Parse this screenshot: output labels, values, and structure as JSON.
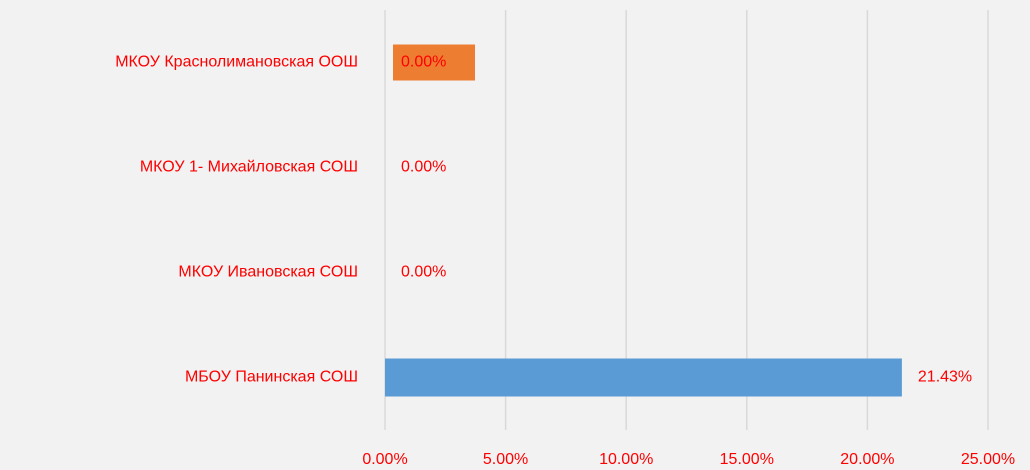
{
  "chart_data": {
    "type": "bar",
    "orientation": "horizontal",
    "categories": [
      "МКОУ Краснолимановская ООШ",
      "МКОУ 1- Михайловская СОШ",
      "МКОУ Ивановская СОШ",
      "МБОУ Панинская СОШ"
    ],
    "values": [
      0,
      0,
      0,
      21.43
    ],
    "value_labels": [
      "0.00%",
      "0.00%",
      "0.00%",
      "21.43%"
    ],
    "color": "#5b9bd5",
    "xlim": [
      0,
      25
    ],
    "xticks": [
      {
        "value": 0,
        "label": "0.00%"
      },
      {
        "value": 5,
        "label": "5.00%"
      },
      {
        "value": 10,
        "label": "10.00%"
      },
      {
        "value": 15,
        "label": "15.00%"
      },
      {
        "value": 20,
        "label": "20.00%"
      },
      {
        "value": 25,
        "label": "25.00%"
      }
    ],
    "grid": true
  }
}
